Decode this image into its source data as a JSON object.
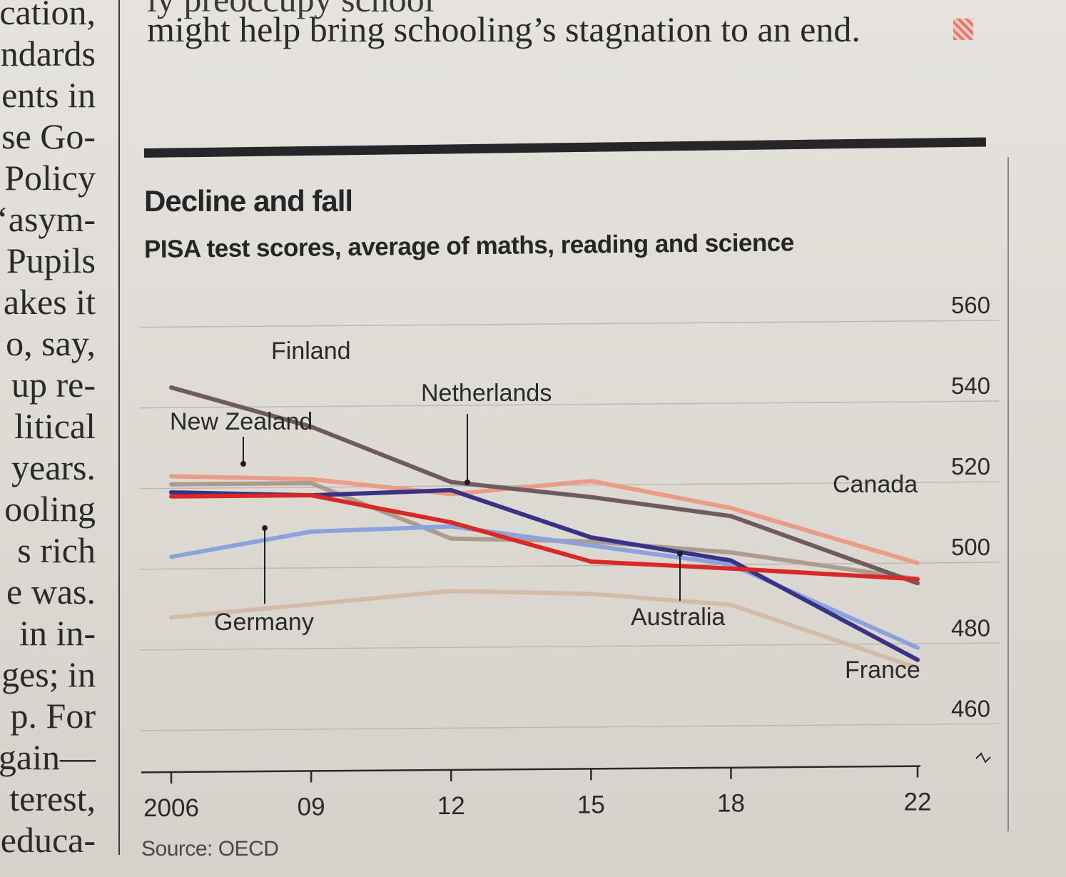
{
  "article": {
    "left_column_lines": [
      "cation,",
      "ndards",
      "ents in",
      "se Go-",
      "Policy",
      "‘asym-",
      "Pupils",
      "akes it",
      "o, say,",
      "up re-",
      "litical",
      "years.",
      "ooling",
      "s rich",
      "e was.",
      "in in-",
      "ges; in",
      "p. For",
      "gain—",
      "terest,",
      "educa-"
    ],
    "top_line_1": "ly preoccupy school",
    "top_line_2": "might help bring schooling’s stagnation to an end."
  },
  "chart_data": {
    "type": "line",
    "title": "Decline and fall",
    "subtitle": "PISA test scores, average of maths, reading and science",
    "source": "Source: OECD",
    "xlabel": "",
    "ylabel": "",
    "x": [
      2006,
      2009,
      2012,
      2015,
      2018,
      2022
    ],
    "x_tick_labels": [
      "2006",
      "09",
      "12",
      "15",
      "18",
      "22"
    ],
    "y_ticks": [
      460,
      480,
      500,
      520,
      540,
      560
    ],
    "y_tick_labels": [
      "460",
      "480",
      "500",
      "520",
      "540",
      "560"
    ],
    "ylim": [
      450,
      565
    ],
    "y_axis_side": "right",
    "axis_break": true,
    "grid": true,
    "series": [
      {
        "name": "Finland",
        "color": "#6e5b60",
        "values": [
          545,
          535,
          521,
          517,
          512,
          495
        ]
      },
      {
        "name": "Canada",
        "color": "#eb9c87",
        "values": [
          523,
          522,
          518,
          521,
          514,
          500
        ]
      },
      {
        "name": "New Zealand",
        "color": "#ab9c8e",
        "values": [
          521,
          521,
          507,
          506,
          503,
          496
        ]
      },
      {
        "name": "Netherlands",
        "color": "#3a3284",
        "values": [
          519,
          518,
          519,
          507,
          501,
          476
        ]
      },
      {
        "name": "Germany",
        "color": "#8aa3dc",
        "values": [
          503,
          509,
          510,
          505,
          500,
          479
        ]
      },
      {
        "name": "Australia",
        "color": "#d92826",
        "values": [
          518,
          518,
          511,
          501,
          499,
          496
        ]
      },
      {
        "name": "France",
        "color": "#d3bba7",
        "values": [
          488,
          491,
          494,
          493,
          490,
          474
        ]
      }
    ]
  }
}
